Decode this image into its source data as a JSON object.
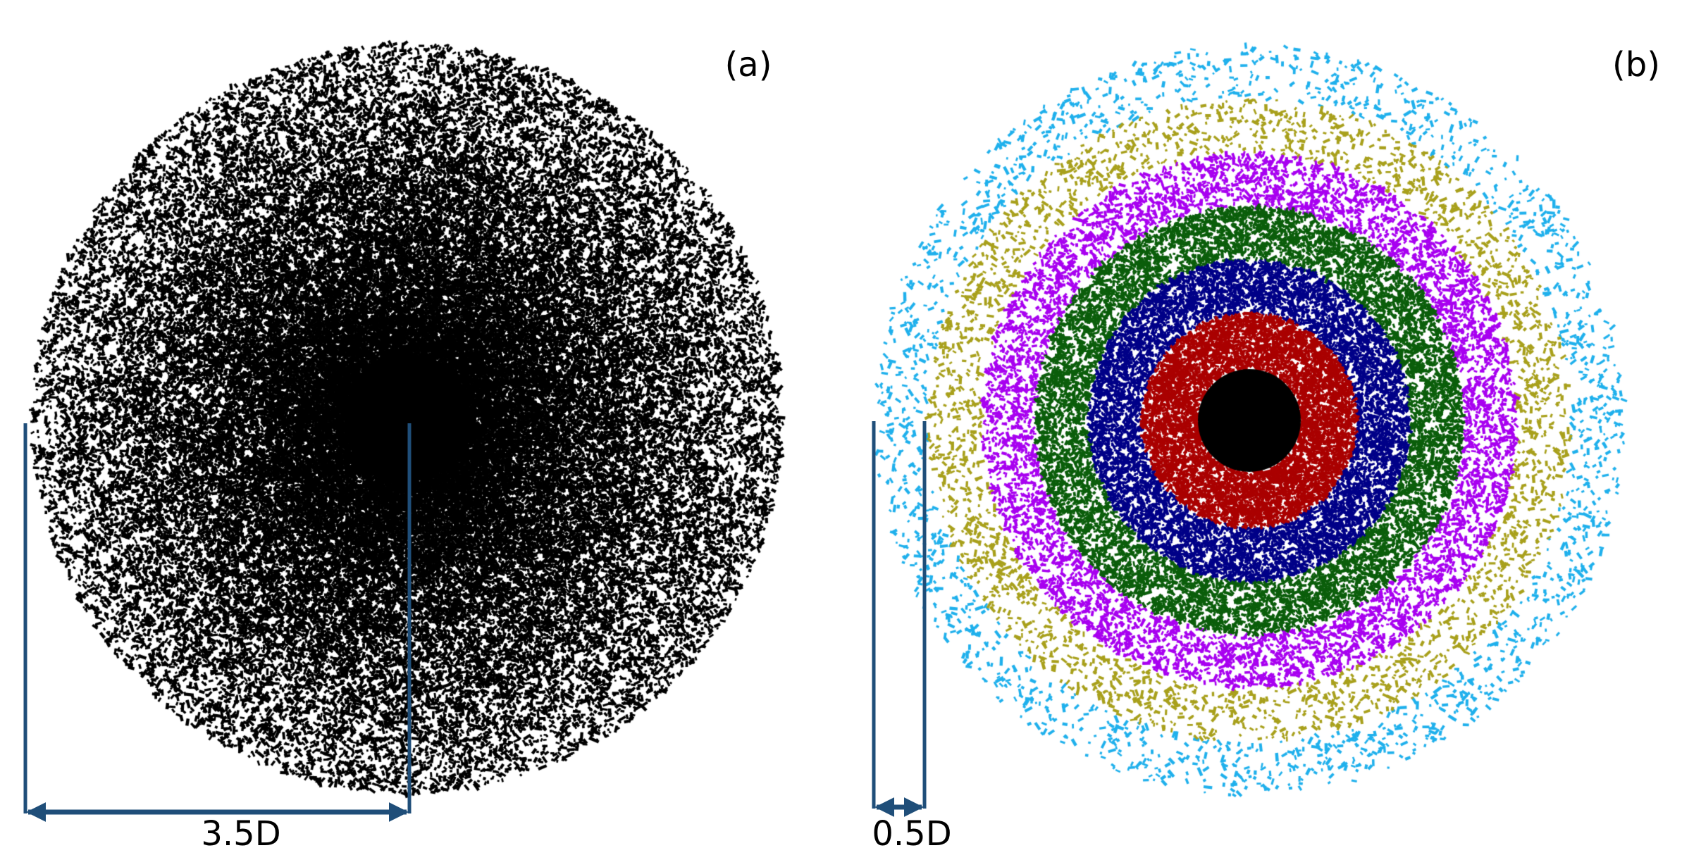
{
  "panels": [
    {
      "label": "(a)",
      "scale_label": "3.5D",
      "coloring": "single",
      "colors": [
        "#000000"
      ]
    },
    {
      "label": "(b)",
      "scale_label": "0.5D",
      "coloring": "radial-bands",
      "bands_inner_to_outer": [
        "#000000",
        "#aa0000",
        "#000088",
        "#0b5e0b",
        "#a800f0",
        "#a8a01c",
        "#1fb0ec"
      ]
    }
  ],
  "scale_bar_color": "#1f4e79"
}
